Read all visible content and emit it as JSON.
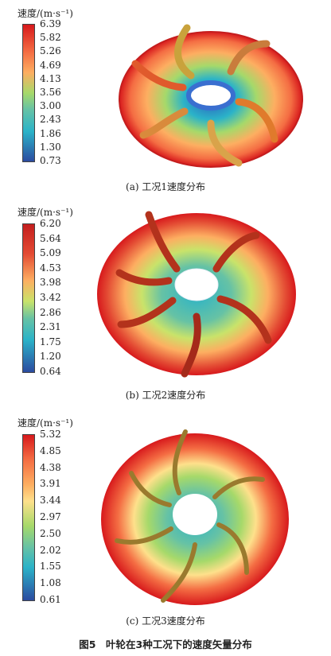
{
  "panels": [
    {
      "legend_title": "速度/(m·s⁻¹)",
      "ticks": [
        "6.39",
        "5.82",
        "5.26",
        "4.69",
        "4.13",
        "3.56",
        "3.00",
        "2.43",
        "1.86",
        "1.30",
        "0.73"
      ],
      "caption": "(a) 工况1速度分布"
    },
    {
      "legend_title": "速度/(m·s⁻¹)",
      "ticks": [
        "6.20",
        "5.64",
        "5.09",
        "4.53",
        "3.98",
        "3.42",
        "2.86",
        "2.31",
        "1.75",
        "1.20",
        "0.64"
      ],
      "caption": "(b) 工况2速度分布"
    },
    {
      "legend_title": "速度/(m·s⁻¹)",
      "ticks": [
        "5.32",
        "4.85",
        "4.38",
        "3.91",
        "3.44",
        "2.97",
        "2.50",
        "2.02",
        "1.55",
        "1.08",
        "0.61"
      ],
      "caption": "(c) 工况3速度分布"
    }
  ],
  "figure_caption": "图5　叶轮在3种工况下的速度矢量分布",
  "colors": {
    "high": "#d7191c",
    "mid_high": "#fdae61",
    "mid": "#a6d96a",
    "mid_low": "#2bb3c8",
    "low": "#2b4ba0"
  }
}
